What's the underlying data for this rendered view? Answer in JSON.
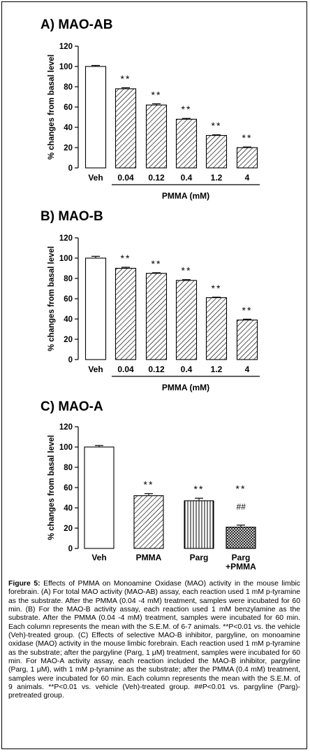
{
  "chart_data": [
    {
      "type": "bar",
      "title": "A) MAO-AB",
      "ylabel": "% changes from basal level",
      "xlabel": "PMMA (mM)",
      "ylim": [
        0,
        120
      ],
      "yticks": [
        "0",
        "20",
        "40",
        "60",
        "80",
        "100",
        "120"
      ],
      "categories": [
        "Veh",
        "0.04",
        "0.12",
        "0.4",
        "1.2",
        "4"
      ],
      "values": [
        100,
        78,
        62,
        48,
        32,
        20
      ],
      "sem": [
        1.0,
        1.0,
        1.2,
        0.8,
        0.6,
        0.6
      ],
      "annotations": [
        "",
        "**",
        "**",
        "**",
        "**",
        "**"
      ],
      "fills": [
        "white",
        "hatch",
        "hatch",
        "hatch",
        "hatch",
        "hatch"
      ]
    },
    {
      "type": "bar",
      "title": "B) MAO-B",
      "ylabel": "% changes from basal level",
      "xlabel": "PMMA (mM)",
      "ylim": [
        0,
        120
      ],
      "yticks": [
        "0",
        "20",
        "40",
        "60",
        "80",
        "100",
        "120"
      ],
      "categories": [
        "Veh",
        "0.04",
        "0.12",
        "0.4",
        "1.2",
        "4"
      ],
      "values": [
        100,
        90,
        85,
        78,
        61,
        39
      ],
      "sem": [
        1.8,
        1.0,
        0.6,
        0.8,
        0.5,
        0.8
      ],
      "annotations": [
        "",
        "**",
        "**",
        "**",
        "**",
        "**"
      ],
      "fills": [
        "white",
        "hatch",
        "hatch",
        "hatch",
        "hatch",
        "hatch"
      ]
    },
    {
      "type": "bar",
      "title": "C) MAO-A",
      "ylabel": "% changes from basal level",
      "xlabel": "",
      "ylim": [
        0,
        120
      ],
      "yticks": [
        "0",
        "20",
        "40",
        "60",
        "80",
        "100",
        "120"
      ],
      "categories": [
        "Veh",
        "PMMA",
        "Parg",
        "Parg\n+PMMA"
      ],
      "values": [
        100,
        52,
        47,
        21
      ],
      "sem": [
        1.5,
        2.0,
        2.5,
        2.0
      ],
      "annotations": [
        "",
        "**",
        "**",
        "**\n##"
      ],
      "fills": [
        "white",
        "hatch",
        "vlines",
        "cross"
      ]
    }
  ],
  "caption": {
    "label": "Figure 5:",
    "text": " Effects of PMMA on Monoamine Oxidase (MAO) activity in the mouse limbic forebrain. (A) For total MAO activity (MAO-AB) assay, each reaction used 1 mM p-tyramine as the substrate. After the PMMA (0.04 -4 mM) treatment, samples were incubated for 60 min. (B) For the MAO-B activity assay, each reaction used 1 mM benzylamine as the substrate. After the PMMA (0.04 -4 mM) treatment, samples were incubated for 60 min. Each column represents the mean with the S.E.M. of 6-7 animals. **P<0.01 vs. the vehicle (Veh)-treated group. (C) Effects of selective MAO-B inhibitor, pargyline, on monoamine oxidase (MAO) activity in the mouse limbic forebrain. Each reaction used 1 mM p-tyramine as the substrate; after the pargyline (Parg, 1 μM) treatment, samples were incubated for 60 min. For MAO-A activity assay, each reaction included the MAO-B inhibitor, pargyline (Parg, 1 μM), with 1 mM p-tyramine as the substrate; after the PMMA (0.4 mM) treatment, samples were incubated for 60 min. Each column represents the mean with the S.E.M. of 9 animals. **P<0.01 vs. vehicle (Veh)-treated group. ##P<0.01 vs. pargyline (Parg)-pretreated group."
  }
}
